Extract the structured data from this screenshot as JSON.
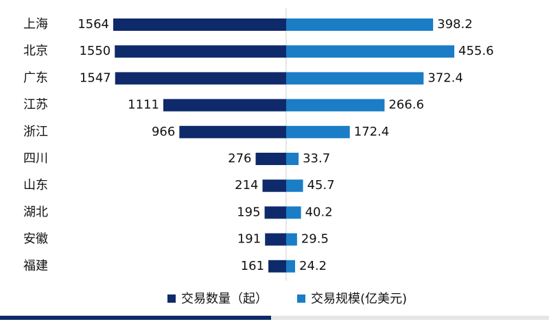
{
  "chart_data": {
    "type": "butterfly-bar",
    "categories": [
      "上海",
      "北京",
      "广东",
      "江苏",
      "浙江",
      "四川",
      "山东",
      "湖北",
      "安徽",
      "福建"
    ],
    "series": [
      {
        "name": "交易数量（起）",
        "color": "#0f2a6a",
        "values": [
          1564,
          1550,
          1547,
          1111,
          966,
          276,
          214,
          195,
          191,
          161
        ]
      },
      {
        "name": "交易规模(亿美元)",
        "color": "#1a7dc6",
        "values": [
          398.2,
          455.6,
          372.4,
          266.6,
          172.4,
          33.7,
          45.7,
          40.2,
          29.5,
          24.2
        ]
      }
    ]
  }
}
